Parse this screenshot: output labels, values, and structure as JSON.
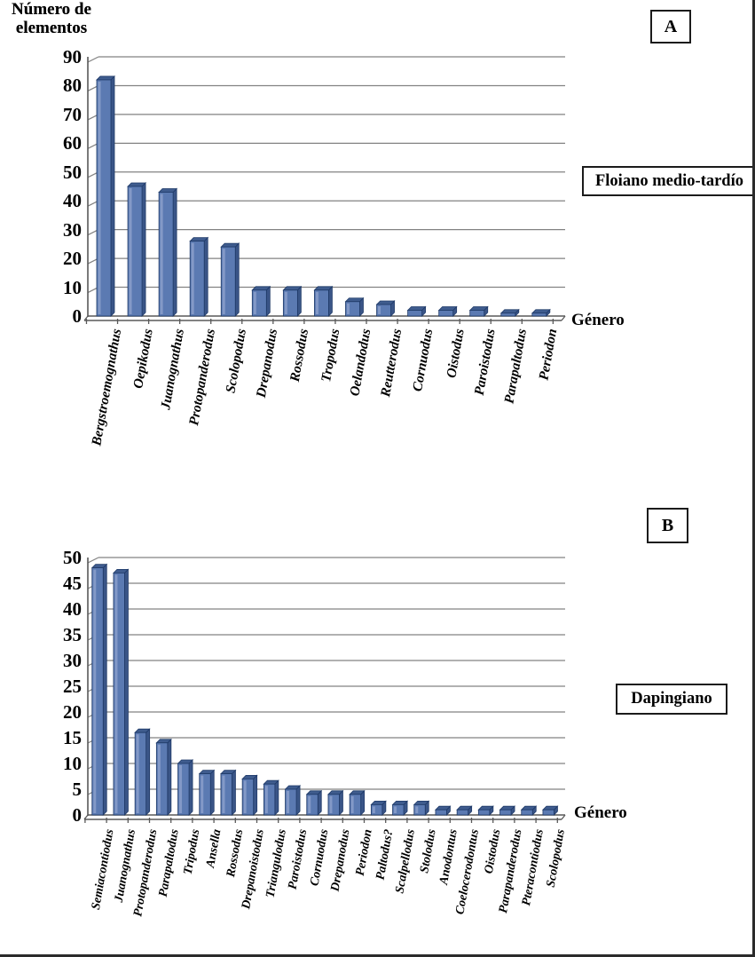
{
  "colors": {
    "bar_front": "#5b7ab2",
    "bar_top": "#3f5c8e",
    "bar_side": "#3a5587",
    "bar_border": "#1f3a68",
    "bar_highlight": "#8399c7",
    "gridline": "#828282",
    "axis": "#595959",
    "text": "#000000",
    "background": "#ffffff"
  },
  "chart_data": [
    {
      "type": "bar",
      "panel": "A",
      "stage_annotation": "Floiano medio-tardío",
      "ylabel_line1": "Número de",
      "ylabel_line2": "elementos",
      "xlabel": "Género",
      "ylim": [
        0,
        90
      ],
      "ytick_step": 10,
      "grid": true,
      "legend": null,
      "categories": [
        "Bergstroemognathus",
        "Oepikodus",
        "Juanognathus",
        "Protopanderodus",
        "Scolopodus",
        "Drepanodus",
        "Rossodus",
        "Tropodus",
        "Oelandodus",
        "Reutterodus",
        "Cornuodus",
        "Oistodus",
        "Paroistodus",
        "Parapaltodus",
        "Periodon"
      ],
      "values": [
        82,
        45,
        43,
        26,
        24,
        9,
        9,
        9,
        5,
        4,
        2,
        2,
        2,
        1,
        1
      ]
    },
    {
      "type": "bar",
      "panel": "B",
      "stage_annotation": "Dapingiano",
      "ylabel_line1": "Número de",
      "ylabel_line2": "elementos",
      "xlabel": "Género",
      "ylim": [
        0,
        50
      ],
      "ytick_step": 5,
      "grid": true,
      "legend": null,
      "categories": [
        "Semiacontiodus",
        "Juanognathus",
        "Protopanderodus",
        "Parapaltodus",
        "Tripodus",
        "Ansella",
        "Rossodus",
        "Drepanoistodus",
        "Triangulodus",
        "Paroistodus",
        "Cornuodus",
        "Drepanodus",
        "Periodon",
        "Paltodus?",
        "Scalpellodus",
        "Stolodus",
        "Anodontus",
        "Coelocerodontus",
        "Oistodus",
        "Parapanderodus",
        "Pteracontiodus",
        "Scolopodus"
      ],
      "values": [
        48,
        47,
        16,
        14,
        10,
        8,
        8,
        7,
        6,
        5,
        4,
        4,
        4,
        2,
        2,
        2,
        1,
        1,
        1,
        1,
        1,
        1
      ]
    }
  ]
}
